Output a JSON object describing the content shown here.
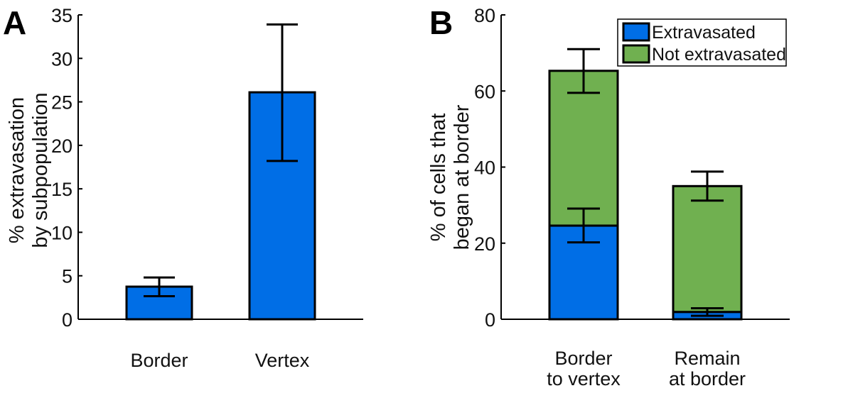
{
  "chart_data": [
    {
      "panel_label": "A",
      "type": "bar",
      "title": "",
      "xlabel": "",
      "ylabel": [
        "% extravasation",
        "by subpopulation"
      ],
      "ylim": [
        0,
        35
      ],
      "yticks": [
        0,
        5,
        10,
        15,
        20,
        25,
        30,
        35
      ],
      "categories": [
        "Border",
        "Vertex"
      ],
      "values": [
        3.75,
        26.1
      ],
      "error_low": [
        2.65,
        18.2
      ],
      "error_high": [
        4.8,
        33.9
      ],
      "color": "#006ee6",
      "grid": false
    },
    {
      "panel_label": "B",
      "type": "bar",
      "stacked": true,
      "title": "",
      "xlabel": "",
      "ylabel": [
        "% of cells that",
        "began at border"
      ],
      "ylim": [
        0,
        80
      ],
      "yticks": [
        0,
        20,
        40,
        60,
        80
      ],
      "categories": [
        [
          "Border",
          "to vertex"
        ],
        [
          "Remain",
          "at border"
        ]
      ],
      "series": [
        {
          "name": "Extravasated",
          "color": "#006ee6",
          "values": [
            24.6,
            1.9
          ],
          "error_low": [
            20.2,
            0.9
          ],
          "error_high": [
            29.1,
            2.9
          ]
        },
        {
          "name": "Not extravasated",
          "color": "#70b050",
          "totals": [
            65.3,
            35.0
          ],
          "error_low": [
            59.5,
            31.2
          ],
          "error_high": [
            71.0,
            38.8
          ]
        }
      ],
      "legend": "top-right",
      "grid": false
    }
  ]
}
